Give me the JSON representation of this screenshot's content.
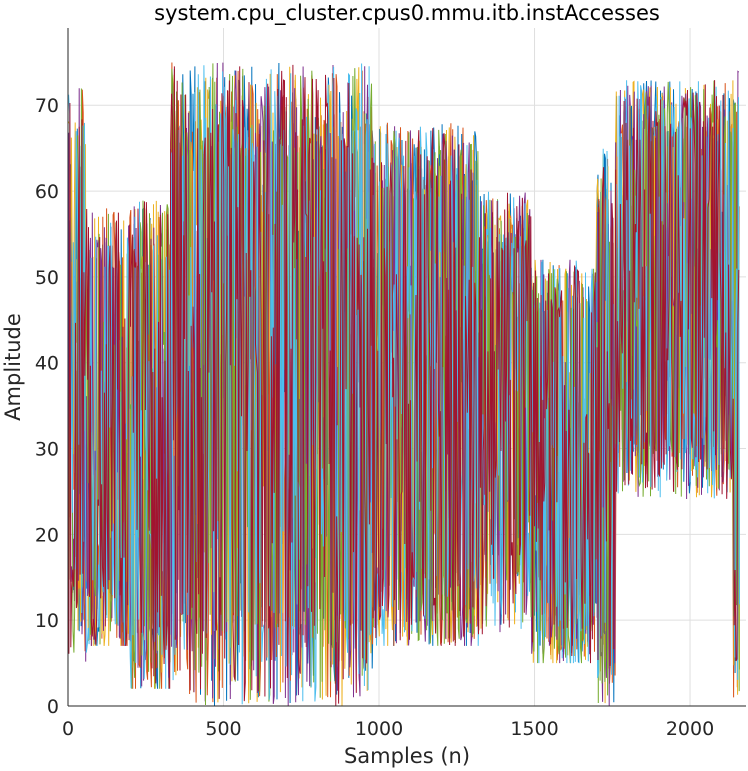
{
  "chart_data": {
    "type": "line",
    "title": "system.cpu_cluster.cpus0.mmu.itb.instAccesses",
    "xlabel": "Samples (n)",
    "ylabel": "Amplitude",
    "xlim": [
      0,
      2180
    ],
    "ylim": [
      0,
      79
    ],
    "xticks": [
      "0",
      "500",
      "1000",
      "1500",
      "2000"
    ],
    "yticks": [
      "0",
      "10",
      "20",
      "30",
      "40",
      "50",
      "60",
      "70"
    ],
    "grid": true,
    "legend": "none",
    "colors": [
      "#0072BD",
      "#D95319",
      "#EDB120",
      "#7E2F8E",
      "#77AC30",
      "#4DBEEE",
      "#A2142F"
    ],
    "n_samples": 2160,
    "segments": [
      {
        "x": [
          0,
          60
        ],
        "range": [
          5,
          72
        ],
        "mid": 30
      },
      {
        "x": [
          60,
          200
        ],
        "range": [
          7,
          58
        ],
        "mid": 25
      },
      {
        "x": [
          200,
          330
        ],
        "range": [
          2,
          59
        ],
        "mid": 22
      },
      {
        "x": [
          330,
          980
        ],
        "range": [
          0,
          75
        ],
        "mid": 38
      },
      {
        "x": [
          980,
          1320
        ],
        "range": [
          7,
          68
        ],
        "mid": 30
      },
      {
        "x": [
          1320,
          1490
        ],
        "range": [
          8,
          60
        ],
        "mid": 35
      },
      {
        "x": [
          1490,
          1700
        ],
        "range": [
          5,
          52
        ],
        "mid": 22
      },
      {
        "x": [
          1700,
          1760
        ],
        "range": [
          0,
          65
        ],
        "mid": 30
      },
      {
        "x": [
          1760,
          2140
        ],
        "range": [
          24,
          73
        ],
        "mid": 48
      },
      {
        "x": [
          2140,
          2160
        ],
        "range": [
          1,
          75
        ],
        "mid": 30
      }
    ]
  }
}
